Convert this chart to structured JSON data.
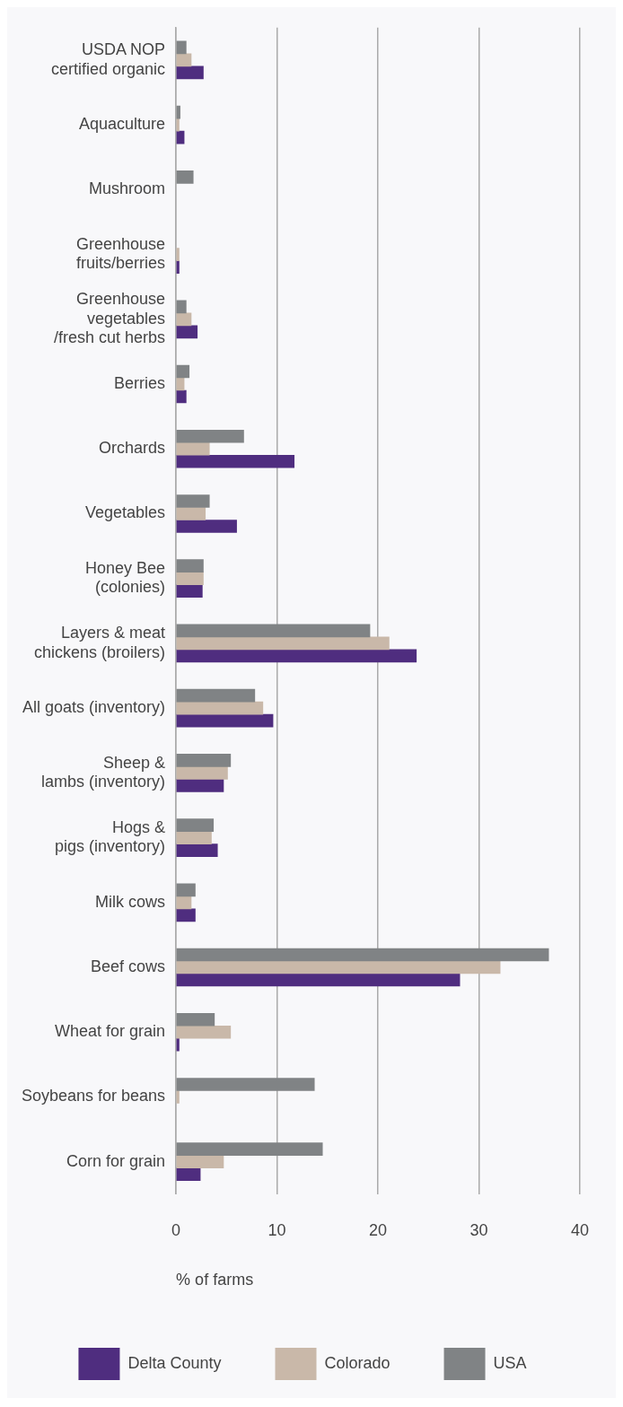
{
  "chart_data": {
    "type": "bar",
    "orientation": "horizontal",
    "xlabel": "% of farms",
    "categories": [
      "USDA NOP\ncertified organic",
      "Aquaculture",
      "Mushroom",
      "Greenhouse\nfruits/berries",
      "Greenhouse\nvegetables\n/fresh cut herbs",
      "Berries",
      "Orchards",
      "Vegetables",
      "Honey Bee\n(colonies)",
      "Layers & meat\nchickens (broilers)",
      "All goats (inventory)",
      "Sheep &\nlambs (inventory)",
      "Hogs &\npigs (inventory)",
      "Milk cows",
      "Beef cows",
      "Wheat for grain",
      "Soybeans for beans",
      "Corn for grain"
    ],
    "series": [
      {
        "name": "USA",
        "color": "#808385",
        "values": [
          1.0,
          0.4,
          1.7,
          null,
          1.0,
          1.3,
          6.7,
          3.3,
          2.7,
          19.2,
          7.8,
          5.4,
          3.7,
          1.9,
          36.9,
          3.8,
          13.7,
          14.5
        ]
      },
      {
        "name": "Colorado",
        "color": "#c9b8a9",
        "values": [
          1.5,
          0.3,
          null,
          0.3,
          1.5,
          0.8,
          3.3,
          2.9,
          2.7,
          21.1,
          8.6,
          5.1,
          3.5,
          1.5,
          32.1,
          5.4,
          0.3,
          4.7
        ]
      },
      {
        "name": "Delta County",
        "color": "#4f2d7f",
        "values": [
          2.7,
          0.8,
          null,
          0.3,
          2.1,
          1.0,
          11.7,
          6.0,
          2.6,
          23.8,
          9.6,
          4.7,
          4.1,
          1.9,
          28.1,
          0.3,
          null,
          2.4
        ]
      }
    ],
    "xlim": [
      0,
      40
    ],
    "xticks": [
      0,
      10,
      20,
      30,
      40
    ],
    "grid": "x",
    "legend": "bottom"
  }
}
